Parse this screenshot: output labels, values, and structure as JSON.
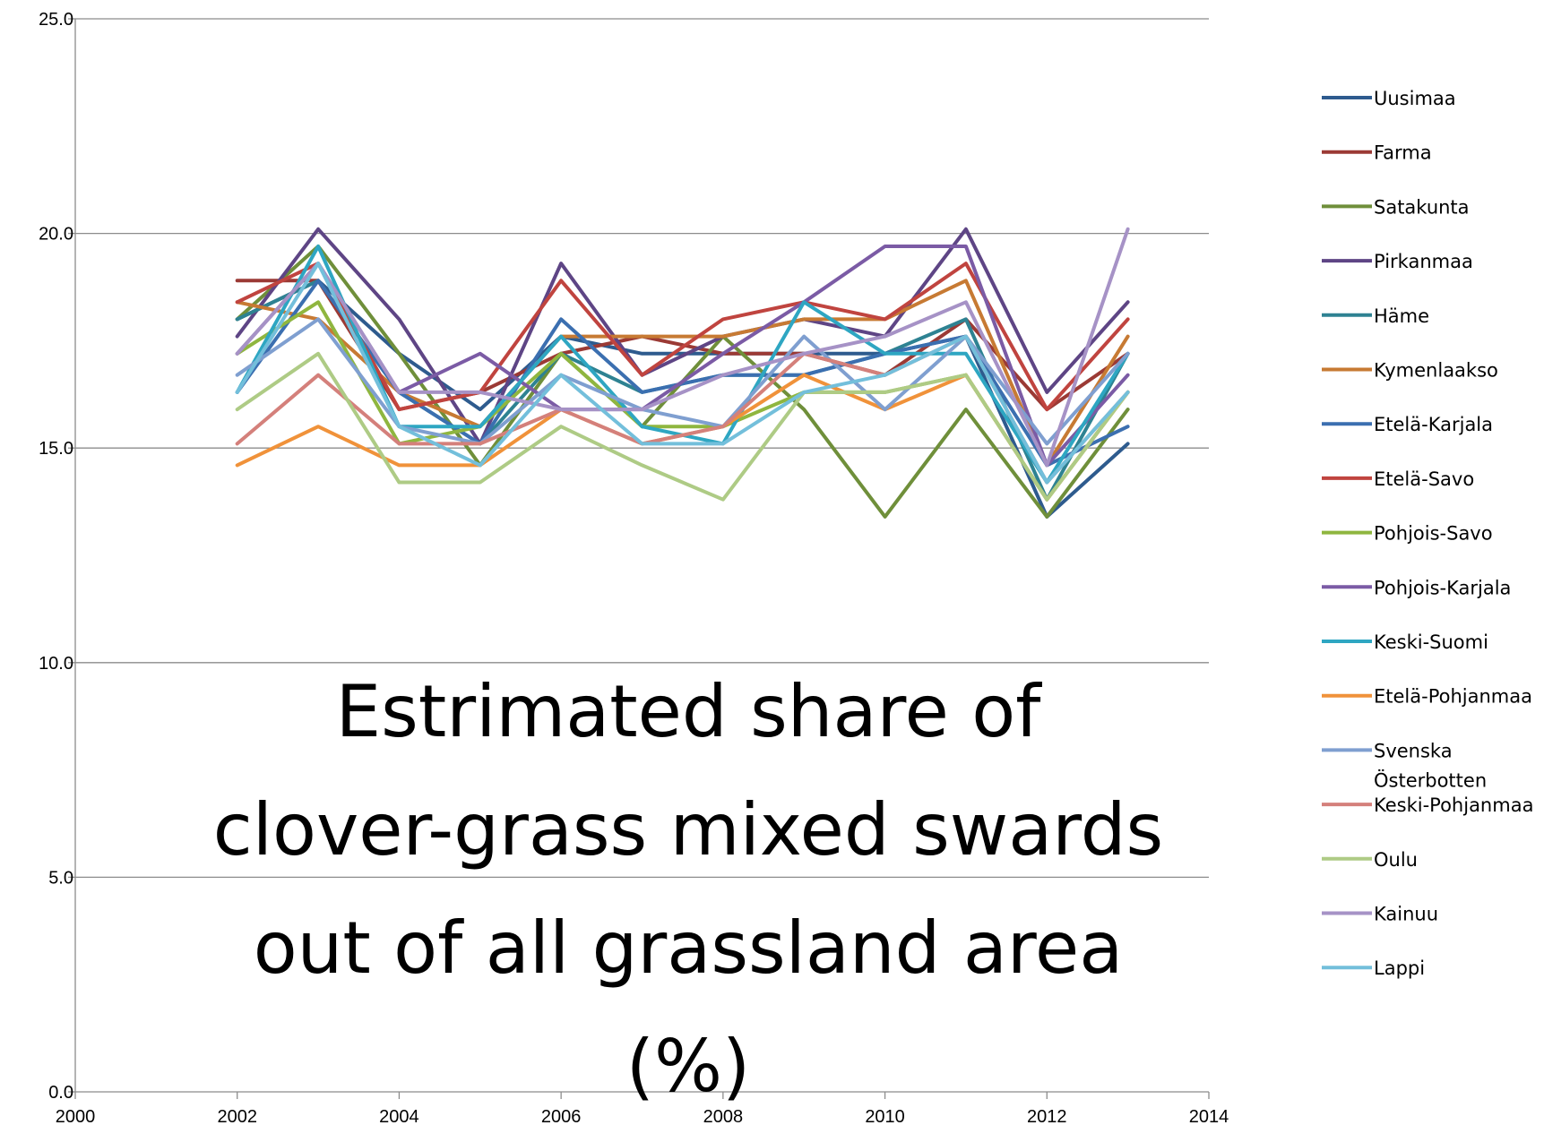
{
  "chart_data": {
    "type": "line",
    "title_lines": [
      "Estrimated share of",
      "clover-grass mixed swards",
      "out of all grassland area",
      "(%)"
    ],
    "xlim": [
      2000,
      2014
    ],
    "ylim": [
      0,
      25
    ],
    "x_ticks": [
      "2000",
      "2002",
      "2004",
      "2006",
      "2008",
      "2010",
      "2012",
      "2014"
    ],
    "y_ticks": [
      "0.0",
      "5.0",
      "10.0",
      "15.0",
      "20.0",
      "25.0"
    ],
    "grid": true,
    "legend_position": "right",
    "x": [
      2002,
      2003,
      2004,
      2005,
      2006,
      2007,
      2008,
      2009,
      2010,
      2011,
      2012,
      2013
    ],
    "series": [
      {
        "name": "Uusimaa",
        "color": "#2e5b8e",
        "values": [
          18.0,
          18.9,
          17.2,
          15.9,
          17.6,
          17.2,
          17.2,
          17.2,
          17.2,
          17.6,
          13.4,
          15.1
        ]
      },
      {
        "name": "Farma",
        "color": "#9b3a35",
        "values": [
          18.9,
          18.9,
          15.9,
          16.3,
          17.2,
          17.6,
          17.2,
          17.2,
          16.7,
          18.0,
          15.9,
          17.2
        ]
      },
      {
        "name": "Satakunta",
        "color": "#6f8f3a",
        "values": [
          18.0,
          19.7,
          17.2,
          14.6,
          17.2,
          15.5,
          17.6,
          15.9,
          13.4,
          15.9,
          13.4,
          15.9
        ]
      },
      {
        "name": "Pirkanmaa",
        "color": "#5e4585",
        "values": [
          17.6,
          20.1,
          18.0,
          15.1,
          19.3,
          16.7,
          17.6,
          18.0,
          17.6,
          20.1,
          16.3,
          18.4
        ]
      },
      {
        "name": "Häme",
        "color": "#2e8292",
        "values": [
          18.0,
          18.9,
          16.3,
          15.1,
          17.2,
          16.3,
          16.7,
          16.7,
          17.2,
          18.0,
          13.8,
          17.2
        ]
      },
      {
        "name": "Kymenlaakso",
        "color": "#c77a33",
        "values": [
          18.4,
          18.0,
          16.3,
          15.5,
          17.6,
          17.6,
          17.6,
          18.0,
          18.0,
          18.9,
          14.6,
          17.6
        ]
      },
      {
        "name": "Etelä-Karjala",
        "color": "#3b6fb0",
        "values": [
          16.3,
          18.9,
          16.3,
          15.1,
          18.0,
          16.3,
          16.7,
          16.7,
          17.2,
          17.6,
          14.6,
          15.5
        ]
      },
      {
        "name": "Etelä-Savo",
        "color": "#c0443f",
        "values": [
          18.4,
          19.3,
          15.9,
          16.3,
          18.9,
          16.7,
          18.0,
          18.4,
          18.0,
          19.3,
          15.9,
          18.0
        ]
      },
      {
        "name": "Pohjois-Savo",
        "color": "#8fb63f",
        "values": [
          17.2,
          18.4,
          15.1,
          15.5,
          17.2,
          15.5,
          15.5,
          16.3,
          16.3,
          16.7,
          13.8,
          16.3
        ]
      },
      {
        "name": "Pohjois-Karjala",
        "color": "#7b5ba5",
        "values": [
          17.2,
          19.3,
          16.3,
          17.2,
          15.9,
          15.9,
          17.2,
          18.4,
          19.7,
          19.7,
          14.6,
          16.7
        ]
      },
      {
        "name": "Keski-Suomi",
        "color": "#2ea6c2",
        "values": [
          16.3,
          19.7,
          15.5,
          15.5,
          17.6,
          15.5,
          15.1,
          18.4,
          17.2,
          17.2,
          14.2,
          17.2
        ]
      },
      {
        "name": "Etelä-Pohjanmaa",
        "color": "#f0923a",
        "values": [
          14.6,
          15.5,
          14.6,
          14.6,
          15.9,
          15.1,
          15.5,
          16.7,
          15.9,
          16.7,
          13.8,
          16.3
        ]
      },
      {
        "name": "Svenska Österbotten",
        "color": "#7f9fd0",
        "values": [
          16.7,
          18.0,
          15.5,
          15.1,
          16.7,
          15.9,
          15.5,
          17.6,
          15.9,
          17.6,
          15.1,
          17.2
        ]
      },
      {
        "name": "Keski-Pohjanmaa",
        "color": "#d4807b",
        "values": [
          15.1,
          16.7,
          15.1,
          15.1,
          15.9,
          15.1,
          15.5,
          17.2,
          16.7,
          17.6,
          14.2,
          16.3
        ]
      },
      {
        "name": "Oulu",
        "color": "#aecb85",
        "values": [
          15.9,
          17.2,
          14.2,
          14.2,
          15.5,
          14.6,
          13.8,
          16.3,
          16.3,
          16.7,
          13.8,
          16.3
        ]
      },
      {
        "name": "Kainuu",
        "color": "#a692c6",
        "values": [
          17.2,
          19.3,
          16.3,
          16.3,
          15.9,
          15.9,
          16.7,
          17.2,
          17.6,
          18.4,
          14.6,
          20.1
        ]
      },
      {
        "name": "Lappi",
        "color": "#73bfdb",
        "values": [
          16.3,
          19.3,
          15.5,
          14.6,
          16.7,
          15.1,
          15.1,
          16.3,
          16.7,
          17.6,
          14.2,
          16.3
        ]
      }
    ]
  }
}
